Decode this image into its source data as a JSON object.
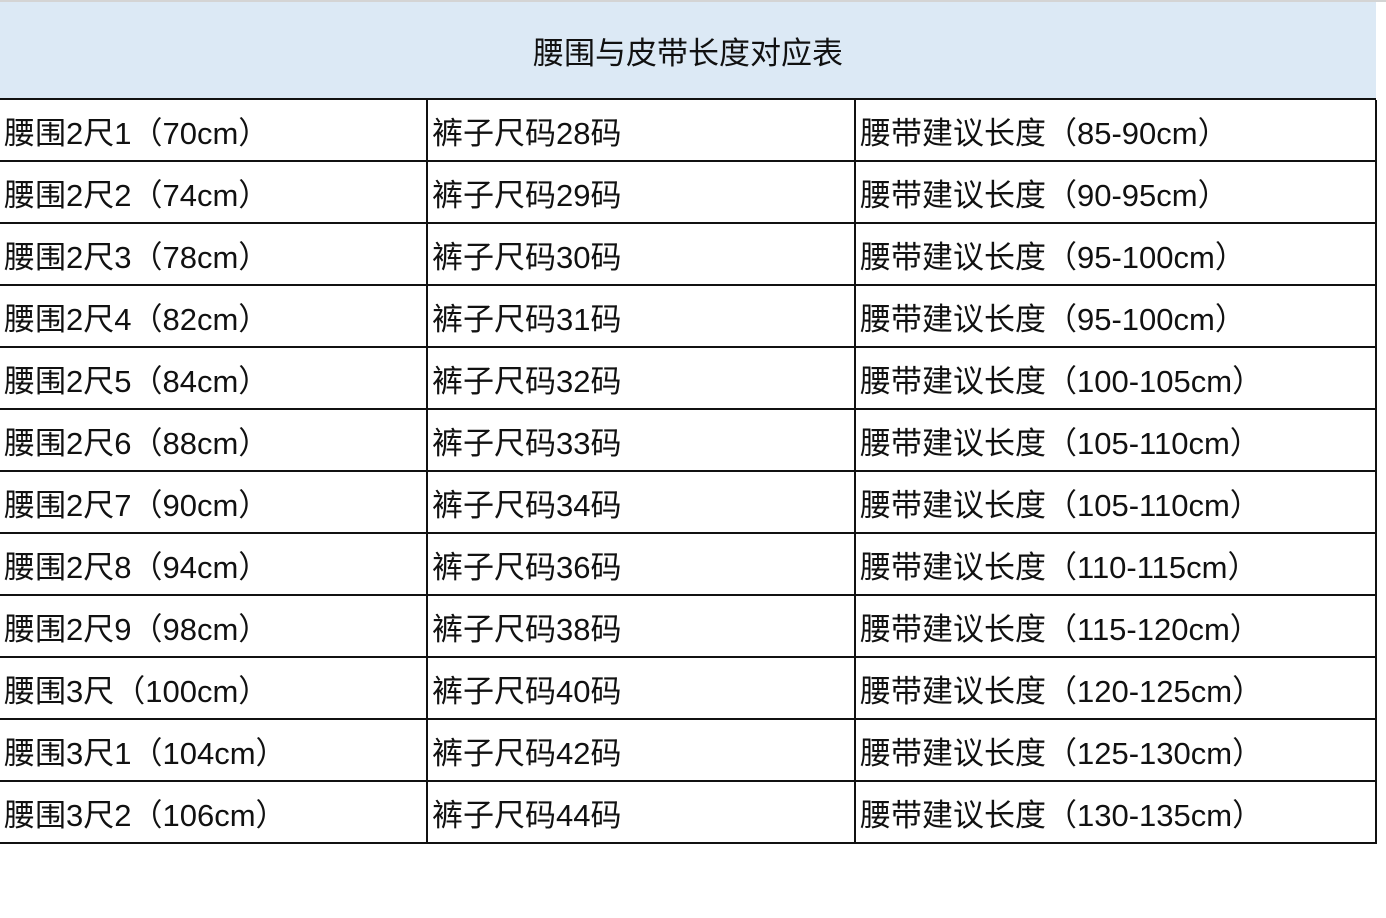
{
  "title": "腰围与皮带长度对应表",
  "rows": [
    [
      "腰围2尺1（70cm）",
      "裤子尺码28码",
      "腰带建议长度（85-90cm）"
    ],
    [
      "腰围2尺2（74cm）",
      "裤子尺码29码",
      "腰带建议长度（90-95cm）"
    ],
    [
      "腰围2尺3（78cm）",
      "裤子尺码30码",
      "腰带建议长度（95-100cm）"
    ],
    [
      "腰围2尺4（82cm）",
      "裤子尺码31码",
      "腰带建议长度（95-100cm）"
    ],
    [
      "腰围2尺5（84cm）",
      "裤子尺码32码",
      "腰带建议长度（100-105cm）"
    ],
    [
      "腰围2尺6（88cm）",
      "裤子尺码33码",
      "腰带建议长度（105-110cm）"
    ],
    [
      "腰围2尺7（90cm）",
      "裤子尺码34码",
      "腰带建议长度（105-110cm）"
    ],
    [
      "腰围2尺8（94cm）",
      "裤子尺码36码",
      "腰带建议长度（110-115cm）"
    ],
    [
      "腰围2尺9（98cm）",
      "裤子尺码38码",
      "腰带建议长度（115-120cm）"
    ],
    [
      "腰围3尺（100cm）",
      "裤子尺码40码",
      "腰带建议长度（120-125cm）"
    ],
    [
      "腰围3尺1（104cm）",
      "裤子尺码42码",
      "腰带建议长度（125-130cm）"
    ],
    [
      "腰围3尺2（106cm）",
      "裤子尺码44码",
      "腰带建议长度（130-135cm）"
    ]
  ],
  "colors": {
    "header_bg": "#dce9f5",
    "border": "#111111"
  }
}
